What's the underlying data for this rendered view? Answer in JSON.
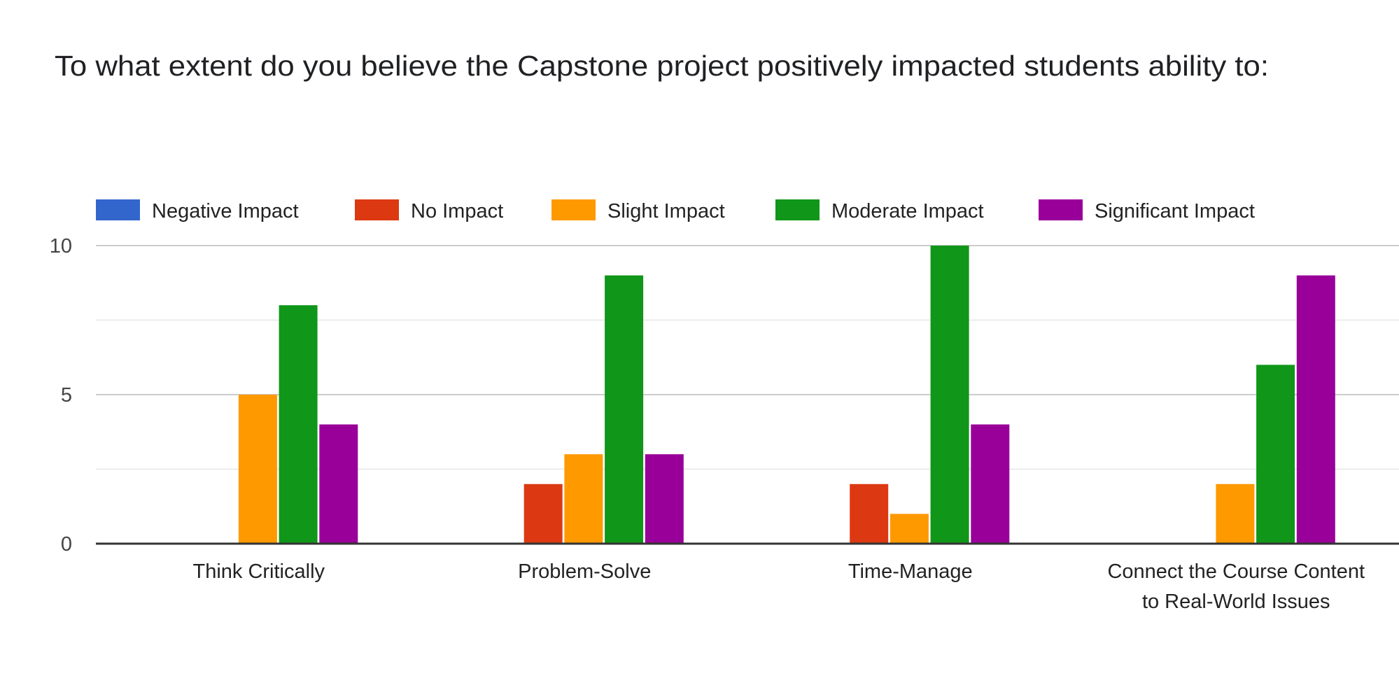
{
  "chart_data": {
    "type": "bar",
    "title": "To what extent do you believe the Capstone project positively impacted students ability to:",
    "xlabel": "",
    "ylabel": "",
    "categories": [
      [
        "Think Critically"
      ],
      [
        "Problem-Solve"
      ],
      [
        "Time-Manage"
      ],
      [
        "Connect the Course Content",
        "to Real-World Issues"
      ]
    ],
    "series": [
      {
        "name": "Negative Impact",
        "color": "#3366cc",
        "values": [
          0,
          0,
          0,
          0
        ]
      },
      {
        "name": "No Impact",
        "color": "#dc3912",
        "values": [
          0,
          2,
          2,
          0
        ]
      },
      {
        "name": "Slight Impact",
        "color": "#ff9900",
        "values": [
          5,
          3,
          1,
          2
        ]
      },
      {
        "name": "Moderate Impact",
        "color": "#109618",
        "values": [
          8,
          9,
          10,
          6
        ]
      },
      {
        "name": "Significant Impact",
        "color": "#990099",
        "values": [
          4,
          3,
          4,
          9
        ]
      }
    ],
    "ylim": [
      0,
      10
    ],
    "yticks": [
      0,
      5,
      10
    ],
    "minor_gridlines": [
      2.5,
      7.5
    ],
    "grid": true,
    "legend_position": "top-left"
  }
}
